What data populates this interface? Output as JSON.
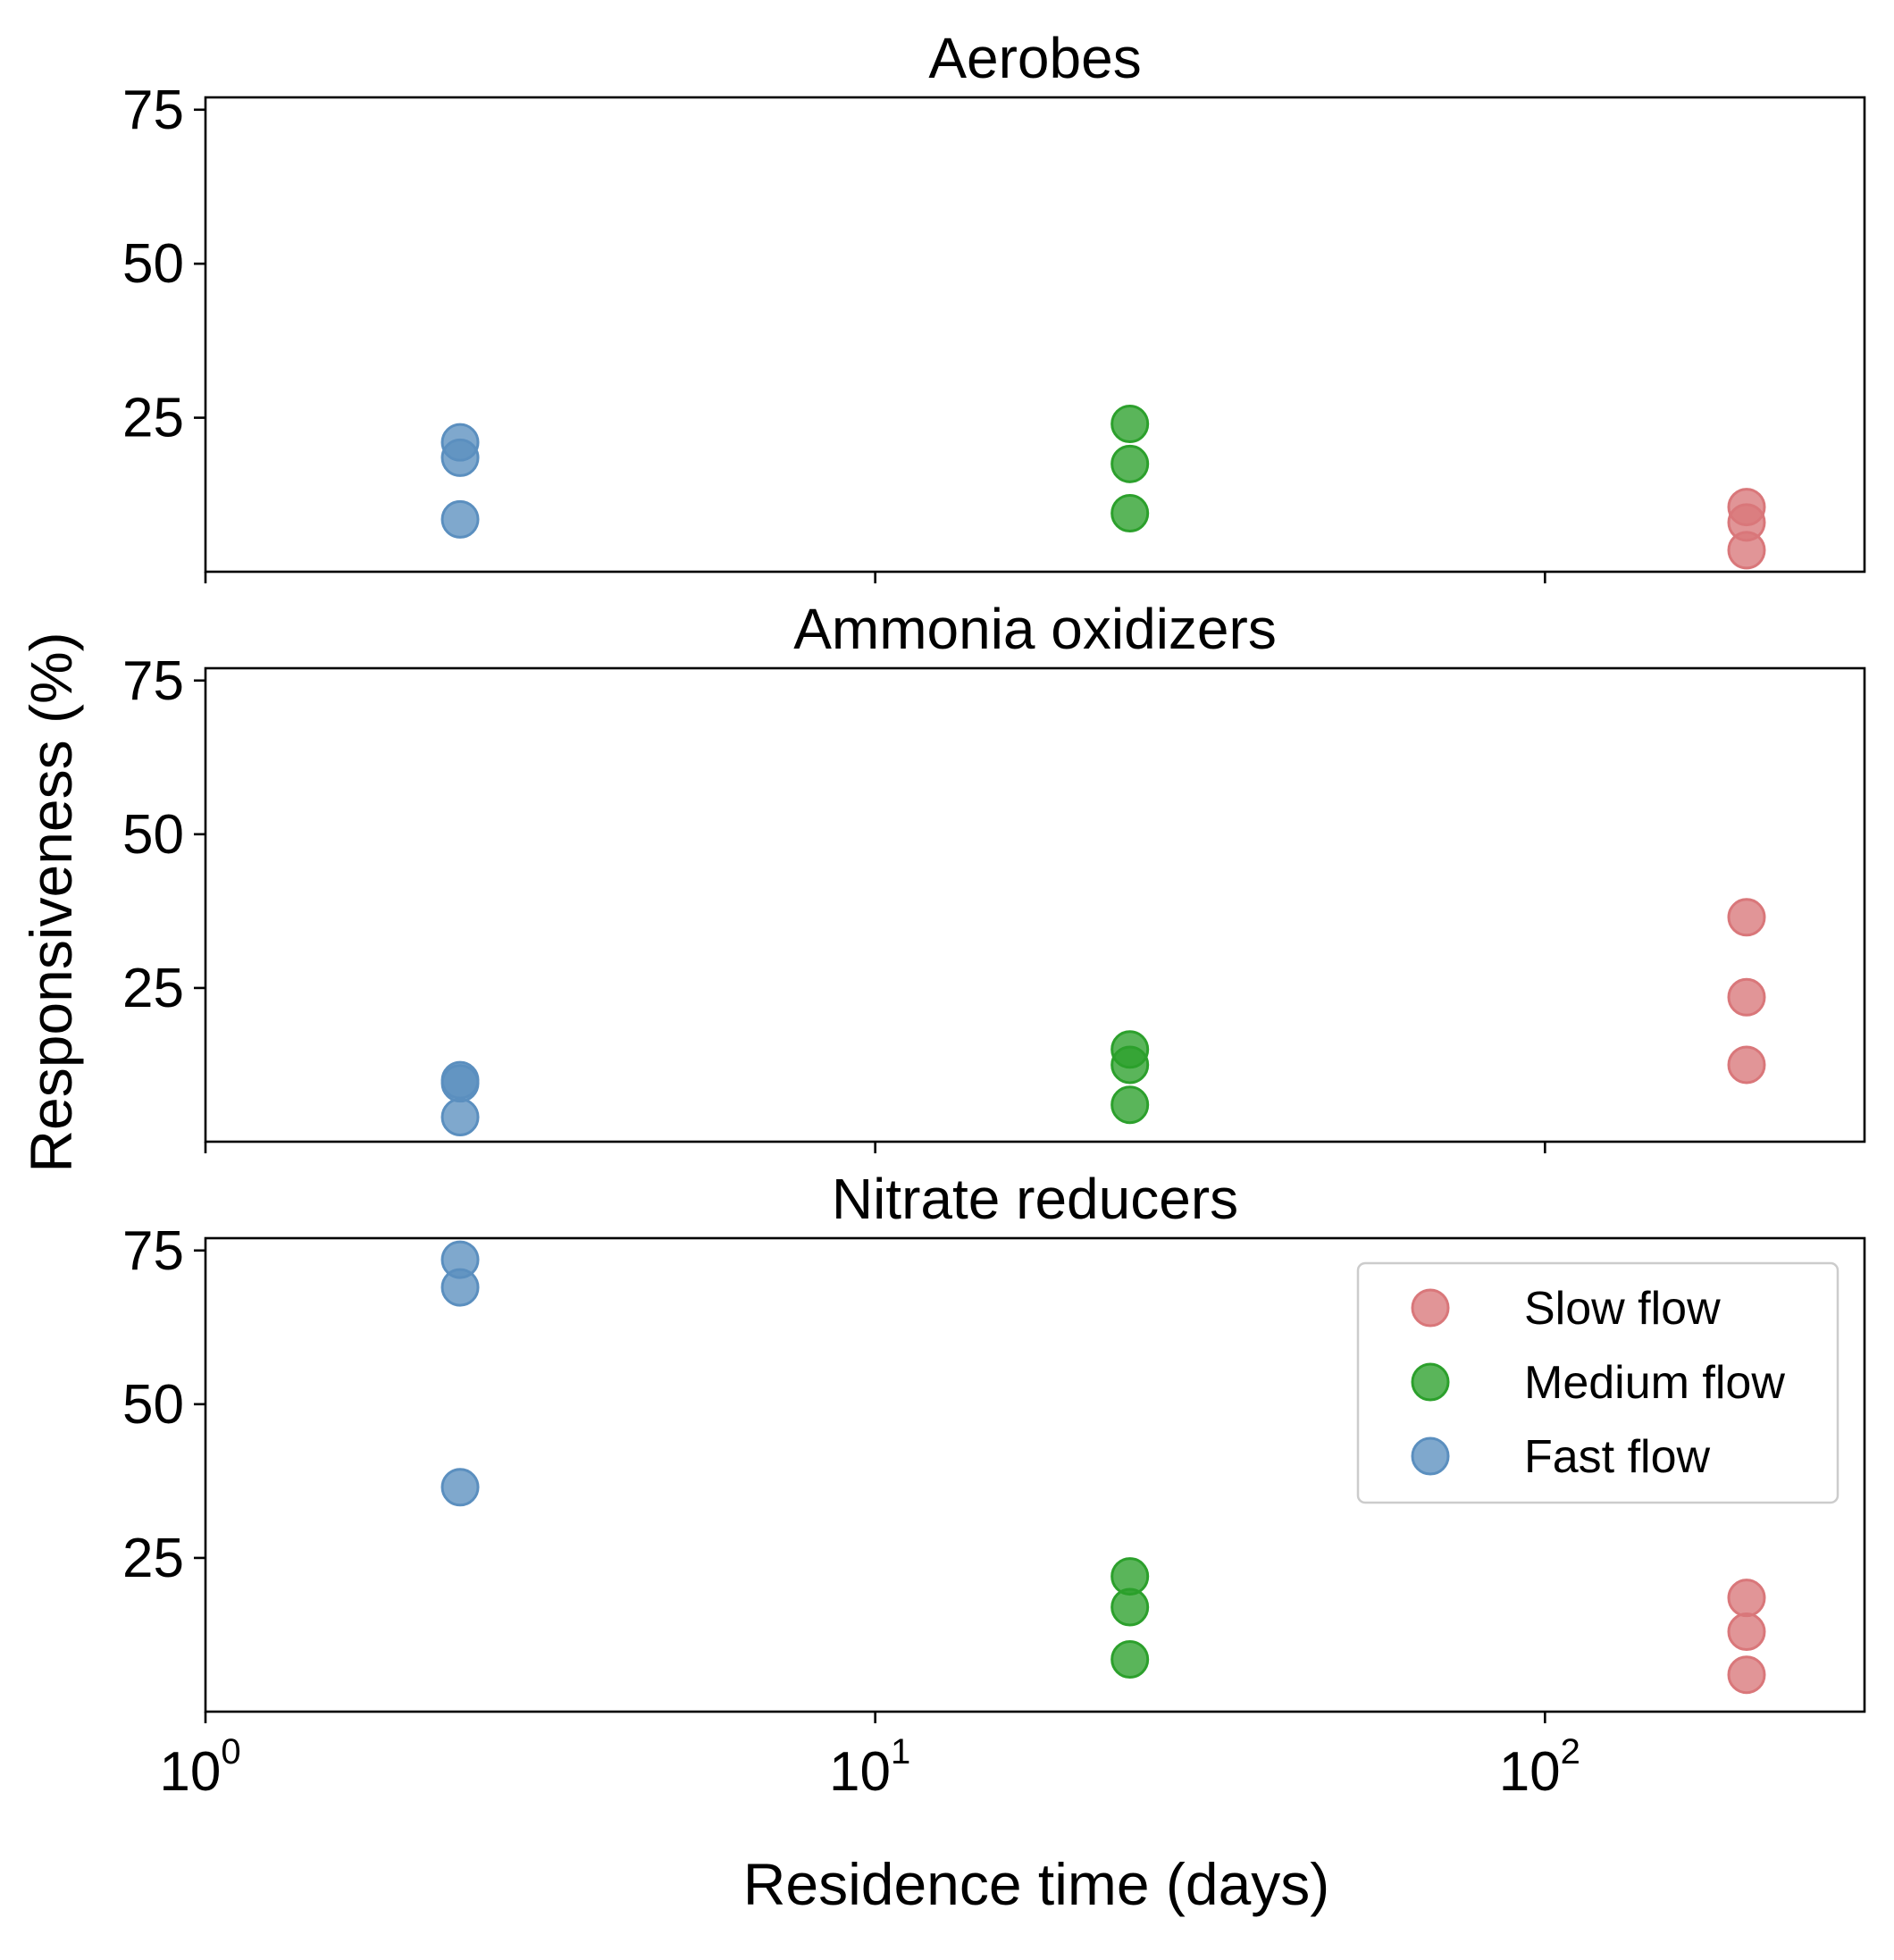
{
  "chart_data": {
    "type": "scatter",
    "x_scale": "log",
    "xlabel": "Residence time (days)",
    "ylabel": "Responsiveness (%)",
    "xlim": [
      1,
      300
    ],
    "ylim": [
      0,
      77
    ],
    "yticks": [
      25,
      50,
      75
    ],
    "xticks": [
      {
        "base": "10",
        "exp": "0",
        "value": 1
      },
      {
        "base": "10",
        "exp": "1",
        "value": 10
      },
      {
        "base": "10",
        "exp": "2",
        "value": 100
      }
    ],
    "sharex": true,
    "grid": false,
    "legend": {
      "location": "upper-right",
      "panel": 2,
      "entries": [
        "Slow flow",
        "Medium flow",
        "Fast flow"
      ]
    },
    "series_colors": {
      "Slow flow": "#d9777a",
      "Medium flow": "#2ca02c",
      "Fast flow": "#5b8fbf"
    },
    "panels": [
      {
        "title": "Aerobes",
        "series": [
          {
            "name": "Slow flow",
            "x": [
              200,
              200,
              200
            ],
            "y": [
              10.5,
              8,
              3.5
            ]
          },
          {
            "name": "Medium flow",
            "x": [
              24,
              24,
              24
            ],
            "y": [
              24,
              17.5,
              9.5
            ]
          },
          {
            "name": "Fast flow",
            "x": [
              2.4,
              2.4,
              2.4
            ],
            "y": [
              21,
              18.5,
              8.5
            ]
          }
        ]
      },
      {
        "title": "Ammonia oxidizers",
        "series": [
          {
            "name": "Slow flow",
            "x": [
              200,
              200,
              200
            ],
            "y": [
              36.5,
              23.5,
              12.5
            ]
          },
          {
            "name": "Medium flow",
            "x": [
              24,
              24,
              24
            ],
            "y": [
              15,
              12.5,
              6
            ]
          },
          {
            "name": "Fast flow",
            "x": [
              2.4,
              2.4,
              2.4
            ],
            "y": [
              10,
              9.5,
              4
            ]
          }
        ]
      },
      {
        "title": "Nitrate reducers",
        "series": [
          {
            "name": "Slow flow",
            "x": [
              200,
              200,
              200
            ],
            "y": [
              18.5,
              13,
              6
            ]
          },
          {
            "name": "Medium flow",
            "x": [
              24,
              24,
              24
            ],
            "y": [
              22,
              17,
              8.5
            ]
          },
          {
            "name": "Fast flow",
            "x": [
              2.4,
              2.4,
              2.4
            ],
            "y": [
              73.5,
              69,
              36.5
            ]
          }
        ]
      }
    ]
  }
}
